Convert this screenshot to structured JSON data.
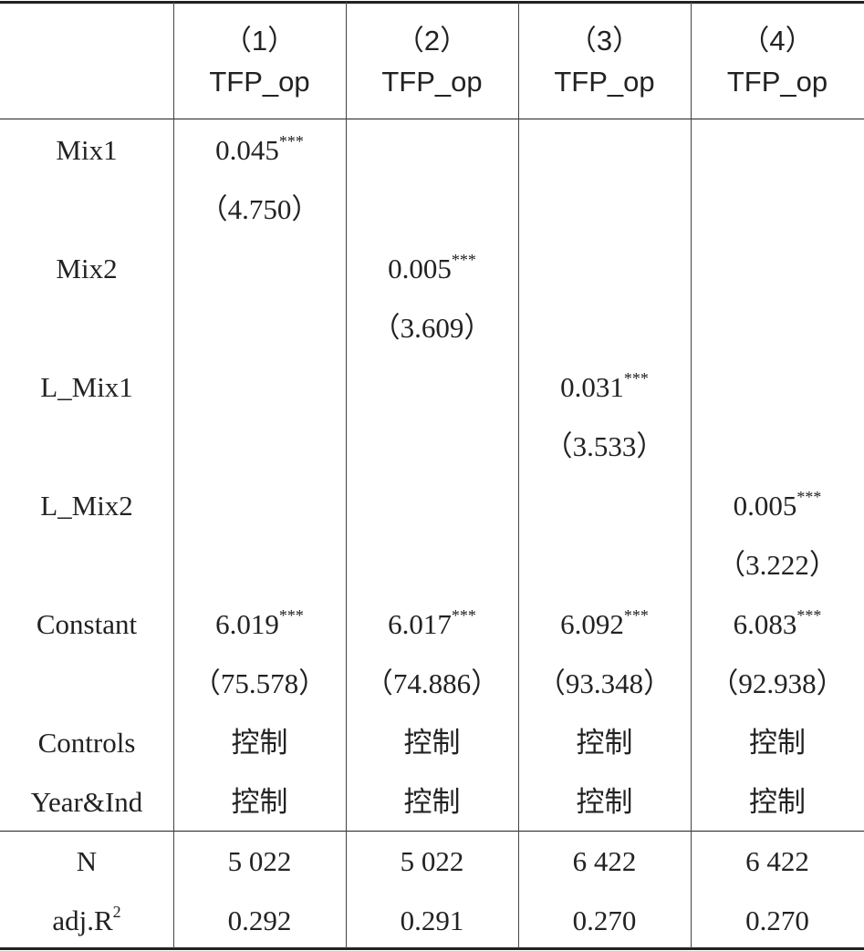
{
  "table": {
    "header": [
      {
        "number": "（1）",
        "dep": "TFP_op"
      },
      {
        "number": "（2）",
        "dep": "TFP_op"
      },
      {
        "number": "（3）",
        "dep": "TFP_op"
      },
      {
        "number": "（4）",
        "dep": "TFP_op"
      }
    ],
    "rows": [
      {
        "label": "Mix1",
        "cells": [
          {
            "value": "0.045",
            "sup": "***"
          },
          null,
          null,
          null
        ]
      },
      {
        "label": null,
        "cells": [
          "（4.750）",
          null,
          null,
          null
        ]
      },
      {
        "label": "Mix2",
        "cells": [
          null,
          {
            "value": "0.005",
            "sup": "***"
          },
          null,
          null
        ]
      },
      {
        "label": null,
        "cells": [
          null,
          "（3.609）",
          null,
          null
        ]
      },
      {
        "label": "L_Mix1",
        "cells": [
          null,
          null,
          {
            "value": "0.031",
            "sup": "***"
          },
          null
        ]
      },
      {
        "label": null,
        "cells": [
          null,
          null,
          "（3.533）",
          null
        ]
      },
      {
        "label": "L_Mix2",
        "cells": [
          null,
          null,
          null,
          {
            "value": "0.005",
            "sup": "***"
          }
        ]
      },
      {
        "label": null,
        "cells": [
          null,
          null,
          null,
          "（3.222）"
        ]
      },
      {
        "label": "Constant",
        "cells": [
          {
            "value": "6.019",
            "sup": "***"
          },
          {
            "value": "6.017",
            "sup": "***"
          },
          {
            "value": "6.092",
            "sup": "***"
          },
          {
            "value": "6.083",
            "sup": "***"
          }
        ]
      },
      {
        "label": null,
        "cells": [
          "（75.578）",
          "（74.886）",
          "（93.348）",
          "（92.938）"
        ]
      },
      {
        "label": "Controls",
        "cells": [
          "控制",
          "控制",
          "控制",
          "控制"
        ]
      },
      {
        "label": "Year&Ind",
        "cells": [
          "控制",
          "控制",
          "控制",
          "控制"
        ]
      },
      {
        "label": "N",
        "cells": [
          "5 022",
          "5 022",
          "6 422",
          "6 422"
        ]
      },
      {
        "label": {
          "value": "adj.R",
          "sup": "2"
        },
        "cells": [
          "0.292",
          "0.291",
          "0.270",
          "0.270"
        ]
      }
    ]
  }
}
